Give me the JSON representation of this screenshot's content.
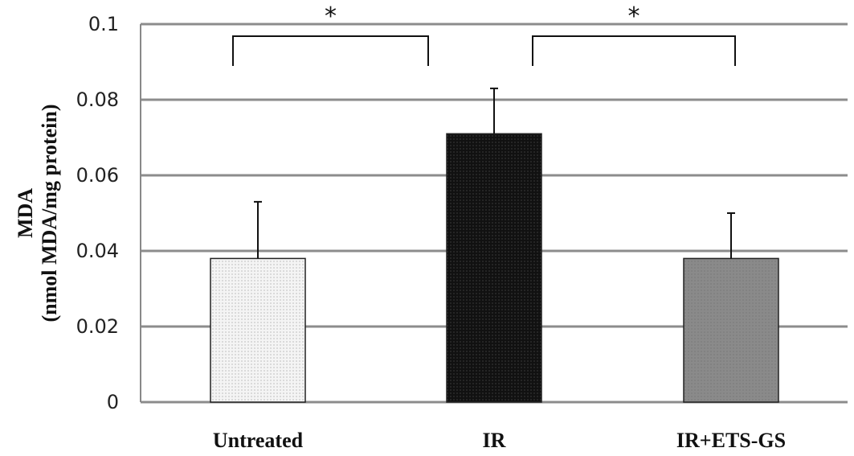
{
  "chart_data": {
    "type": "bar",
    "categories": [
      "Untreated",
      "IR",
      "IR+ETS-GS"
    ],
    "values": [
      0.038,
      0.071,
      0.038
    ],
    "error_upper": [
      0.053,
      0.083,
      0.05
    ],
    "ylabel_line1": "MDA",
    "ylabel_line2": "(nmol MDA/mg protein)",
    "ylim": [
      0,
      0.1
    ],
    "yticks": [
      "0",
      "0.02",
      "0.04",
      "0.06",
      "0.08",
      "0.1"
    ],
    "grid": true,
    "bar_fills": [
      "#f0f0f0",
      "#141414",
      "#8a8a8a"
    ],
    "significance": [
      {
        "from": 0,
        "to": 1,
        "label": "*"
      },
      {
        "from": 1,
        "to": 2,
        "label": "*"
      }
    ]
  }
}
